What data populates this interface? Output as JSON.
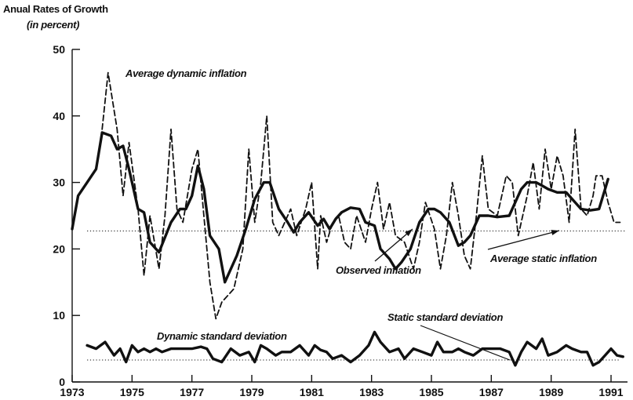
{
  "chart_data": {
    "type": "line",
    "ylabel": "Anual Rates of Growth",
    "ylabel_unit": "(in percent)",
    "xlim": [
      1973,
      1991.5
    ],
    "ylim": [
      0,
      50
    ],
    "x_ticks": [
      "1973",
      "1975",
      "1977",
      "1979",
      "1981",
      "1983",
      "1985",
      "1987",
      "1989",
      "1991"
    ],
    "y_ticks": [
      "0",
      "10",
      "20",
      "30",
      "40",
      "50"
    ],
    "grid": false,
    "legend": "none",
    "annotations": {
      "average_dynamic_inflation": "Average dynamic inflation",
      "observed_inflation": "Observed inflation",
      "average_static_inflation": "Average static inflation",
      "dynamic_standard_deviation": "Dynamic standard deviation",
      "static_standard_deviation": "Static standard deviation"
    },
    "series": [
      {
        "key": "observed",
        "style": "solid-thick",
        "x": [
          1973.0,
          1973.2,
          1973.5,
          1973.8,
          1974.0,
          1974.3,
          1974.5,
          1974.7,
          1974.9,
          1975.2,
          1975.4,
          1975.6,
          1975.9,
          1976.3,
          1976.6,
          1976.8,
          1977.0,
          1977.2,
          1977.4,
          1977.6,
          1977.9,
          1978.1,
          1978.5,
          1978.8,
          1979.1,
          1979.4,
          1979.6,
          1979.9,
          1980.2,
          1980.4,
          1980.6,
          1980.9,
          1981.2,
          1981.4,
          1981.6,
          1981.8,
          1982.0,
          1982.3,
          1982.6,
          1982.8,
          1983.1,
          1983.3,
          1983.6,
          1983.8,
          1984.0,
          1984.3,
          1984.6,
          1984.9,
          1985.1,
          1985.3,
          1985.6,
          1985.9,
          1986.1,
          1986.3,
          1986.6,
          1986.9,
          1987.2,
          1987.6,
          1988.0,
          1988.2,
          1988.5,
          1988.7,
          1988.9,
          1989.2,
          1989.5,
          1989.8,
          1990.0,
          1990.3,
          1990.6,
          1990.8,
          1990.9
        ],
        "y": [
          23,
          28,
          30,
          32,
          37.5,
          37,
          35,
          35.5,
          32,
          26,
          25.5,
          21,
          19.5,
          24,
          26,
          26,
          28,
          32.5,
          29,
          22,
          20,
          15,
          19,
          23,
          27.5,
          30,
          30,
          26,
          24,
          22.5,
          24,
          25.5,
          23.5,
          24.5,
          23,
          24.5,
          25.5,
          26.2,
          26,
          24,
          23.5,
          20,
          18.5,
          17,
          18,
          20,
          24,
          26,
          26,
          25.5,
          24,
          20.5,
          21,
          22,
          25,
          25,
          24.8,
          25,
          29,
          30,
          30,
          29.5,
          29,
          28.5,
          28.5,
          27,
          26,
          25.8,
          26,
          29,
          30.5
        ]
      },
      {
        "key": "dynamic",
        "style": "dashed",
        "x": [
          1974.0,
          1974.2,
          1974.5,
          1974.7,
          1974.9,
          1975.2,
          1975.4,
          1975.6,
          1975.9,
          1976.1,
          1976.3,
          1976.5,
          1976.7,
          1977.0,
          1977.2,
          1977.4,
          1977.6,
          1977.8,
          1978.0,
          1978.4,
          1978.7,
          1978.9,
          1979.1,
          1979.3,
          1979.5,
          1979.7,
          1979.9,
          1980.1,
          1980.3,
          1980.5,
          1980.8,
          1981.0,
          1981.2,
          1981.3,
          1981.5,
          1981.7,
          1981.9,
          1982.1,
          1982.3,
          1982.5,
          1982.8,
          1983.0,
          1983.2,
          1983.4,
          1983.6,
          1983.8,
          1984.1,
          1984.4,
          1984.6,
          1984.8,
          1985.1,
          1985.3,
          1985.5,
          1985.7,
          1985.9,
          1986.1,
          1986.3,
          1986.5,
          1986.7,
          1986.9,
          1987.2,
          1987.5,
          1987.7,
          1987.9,
          1988.2,
          1988.4,
          1988.6,
          1988.8,
          1989.0,
          1989.2,
          1989.4,
          1989.6,
          1989.8,
          1990.0,
          1990.2,
          1990.4,
          1990.5,
          1990.7,
          1990.9,
          1991.1,
          1991.3
        ],
        "y": [
          38,
          46.5,
          38,
          28,
          36,
          26,
          16,
          25,
          17,
          25,
          38,
          26,
          24,
          32,
          35,
          25,
          15,
          9.5,
          12,
          14,
          20,
          35,
          24,
          30,
          40,
          24,
          22,
          24,
          26,
          22,
          26,
          30,
          17,
          25,
          21,
          24,
          25,
          21,
          20,
          25,
          21,
          26,
          30,
          23,
          27,
          22,
          21,
          17,
          21,
          27,
          23,
          17,
          22,
          30,
          25,
          19,
          17,
          25,
          34,
          26,
          25,
          31,
          30,
          22,
          28,
          33,
          26,
          35,
          29,
          34,
          31,
          24,
          38,
          26,
          25,
          28,
          31,
          31,
          27,
          24,
          24
        ]
      },
      {
        "key": "dynamic_sd",
        "style": "solid-thick",
        "x": [
          1973.5,
          1973.8,
          1974.1,
          1974.4,
          1974.6,
          1974.8,
          1975.0,
          1975.2,
          1975.4,
          1975.6,
          1975.8,
          1976.0,
          1976.3,
          1976.6,
          1977.0,
          1977.3,
          1977.5,
          1977.7,
          1978.0,
          1978.3,
          1978.6,
          1978.9,
          1979.1,
          1979.3,
          1979.5,
          1979.8,
          1980.0,
          1980.3,
          1980.6,
          1980.9,
          1981.1,
          1981.3,
          1981.5,
          1981.7,
          1982.0,
          1982.3,
          1982.6,
          1982.9,
          1983.1,
          1983.3,
          1983.6,
          1983.9,
          1984.1,
          1984.4,
          1984.7,
          1985.0,
          1985.2,
          1985.4,
          1985.7,
          1985.9,
          1986.1,
          1986.4,
          1986.7,
          1987.0,
          1987.3,
          1987.6,
          1987.8,
          1988.0,
          1988.2,
          1988.5,
          1988.7,
          1988.9,
          1989.2,
          1989.5,
          1989.7,
          1990.0,
          1990.2,
          1990.4,
          1990.6,
          1990.8,
          1991.0,
          1991.2,
          1991.4
        ],
        "y": [
          5.5,
          5,
          6,
          4,
          5,
          3,
          5.5,
          4.5,
          5,
          4.5,
          5,
          4.5,
          5,
          5,
          5,
          5.3,
          5,
          3.5,
          3,
          5,
          4,
          4.5,
          3,
          5.5,
          5,
          4,
          4.5,
          4.5,
          5.5,
          4,
          5.5,
          4.8,
          4.5,
          3.5,
          4,
          3,
          4,
          5.5,
          7.5,
          6,
          4.5,
          5,
          3.5,
          5,
          4.5,
          4,
          6,
          4.5,
          4.5,
          5,
          4.5,
          4,
          5,
          5,
          5,
          4.5,
          2.5,
          4.5,
          6,
          5,
          6.5,
          4,
          4.5,
          5.5,
          5,
          4.5,
          4.5,
          2.5,
          3,
          4,
          5,
          4,
          3.8
        ]
      }
    ],
    "reference_lines": {
      "average_static_inflation": 22.7,
      "static_standard_deviation": 3.3
    }
  }
}
